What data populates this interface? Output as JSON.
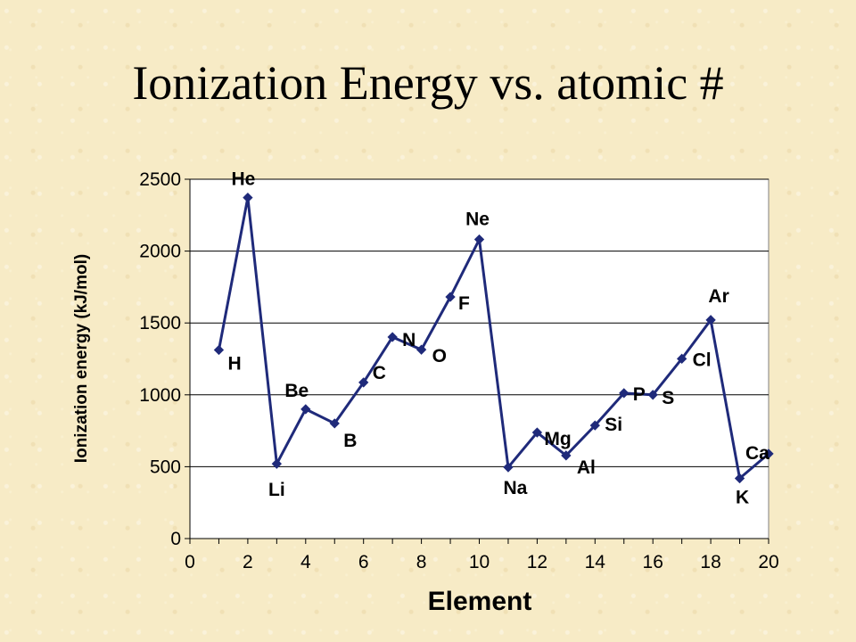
{
  "slide": {
    "title": "Ionization Energy vs. atomic #"
  },
  "chart_data": {
    "type": "line",
    "title": "",
    "xlabel": "Element",
    "ylabel": "Ionization energy (kJ/mol)",
    "xlim": [
      0,
      20
    ],
    "ylim": [
      0,
      2500
    ],
    "xticks": [
      0,
      2,
      4,
      6,
      8,
      10,
      12,
      14,
      16,
      18,
      20
    ],
    "yticks": [
      0,
      500,
      1000,
      1500,
      2000,
      2500
    ],
    "grid": "horizontal",
    "series_color": "#1f2a7a",
    "series": [
      {
        "x": [
          1,
          2,
          3,
          4,
          5,
          6,
          7,
          8,
          9,
          10,
          11,
          12,
          13,
          14,
          15,
          16,
          17,
          18,
          19,
          20
        ],
        "values": [
          1312,
          2372,
          520,
          900,
          801,
          1086,
          1402,
          1314,
          1681,
          2081,
          496,
          738,
          578,
          787,
          1012,
          1000,
          1251,
          1521,
          419,
          590
        ],
        "labels": [
          "H",
          "He",
          "Li",
          "Be",
          "B",
          "C",
          "N",
          "O",
          "F",
          "Ne",
          "Na",
          "Mg",
          "Al",
          "Si",
          "P",
          "S",
          "Cl",
          "Ar",
          "K",
          "Ca"
        ]
      }
    ]
  }
}
